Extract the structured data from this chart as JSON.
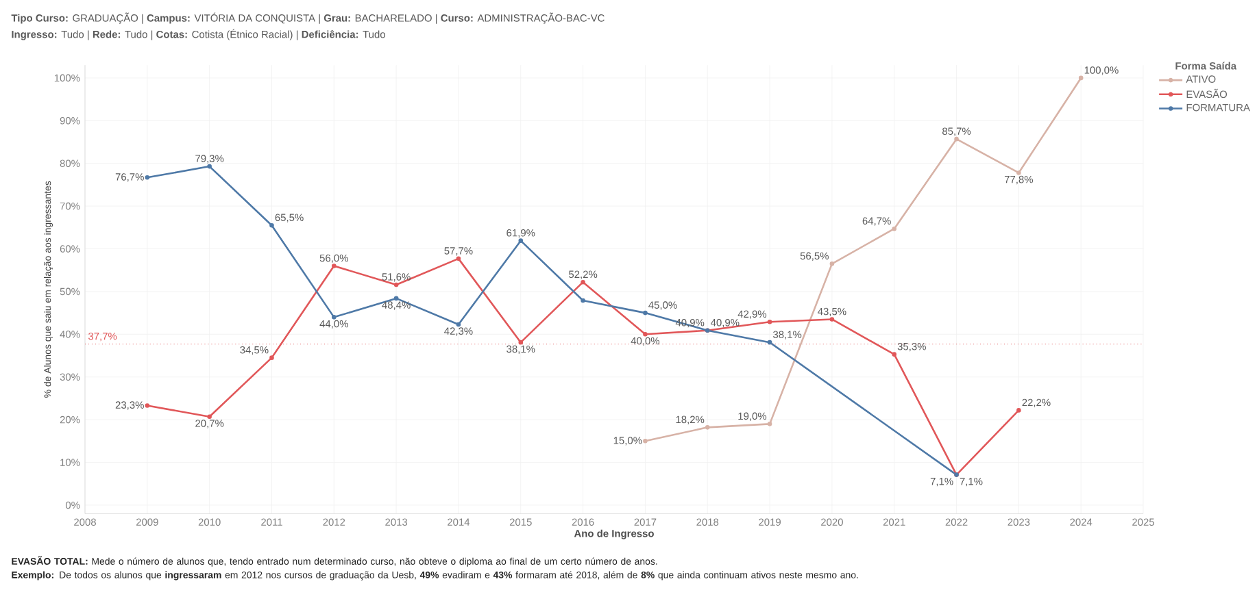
{
  "chart_data": {
    "type": "line",
    "title": "**Tipo Curso:** GRADUAÇÃO | **Campus:** VITÓRIA DA CONQUISTA | **Grau:** BACHARELADO | **Curso:** ADMINISTRAÇÃO-BAC-VC",
    "subtitle": "**Ingresso:** Tudo | **Rede:** Tudo | **Cotas:** Cotista (Étnico Racial) | **Deficiência:** Tudo",
    "xlabel": "Ano de Ingresso",
    "ylabel": "% de Alunos que saiu em relação aos ingressantes",
    "legend_title": "Forma Saída",
    "series": [
      {
        "name": "ATIVO",
        "color": "#d7b2a6",
        "x": [
          2017,
          2018,
          2019,
          2020,
          2021,
          2022,
          2023,
          2024
        ],
        "values": [
          15.0,
          18.2,
          19.0,
          56.5,
          64.7,
          85.7,
          77.8,
          100.0
        ],
        "value_labels": [
          "15,0%",
          "18,2%",
          "19,0%",
          "56,5%",
          "64,7%",
          "85,7%",
          "77,8%",
          "100,0%"
        ]
      },
      {
        "name": "EVASÃO",
        "color": "#e15759",
        "x": [
          2009,
          2010,
          2011,
          2012,
          2013,
          2014,
          2015,
          2016,
          2017,
          2018,
          2019,
          2020,
          2021,
          2022,
          2023
        ],
        "values": [
          23.3,
          20.7,
          34.5,
          56.0,
          51.6,
          57.7,
          38.1,
          52.2,
          40.0,
          40.9,
          42.9,
          43.5,
          35.3,
          7.1,
          22.2
        ],
        "value_labels": [
          "23,3%",
          "20,7%",
          "34,5%",
          "56,0%",
          "51,6%",
          "57,7%",
          "38,1%",
          "52,2%",
          "40,0%",
          "40,9%",
          "42,9%",
          "43,5%",
          "35,3%",
          "7,1%",
          "22,2%"
        ]
      },
      {
        "name": "FORMATURA",
        "color": "#4e79a7",
        "x": [
          2009,
          2010,
          2011,
          2012,
          2013,
          2014,
          2015,
          2016,
          2017,
          2018,
          2019,
          2022
        ],
        "values": [
          76.7,
          79.3,
          65.5,
          44.0,
          48.4,
          42.3,
          61.9,
          47.9,
          45.0,
          40.9,
          38.1,
          7.1
        ],
        "value_labels": [
          "76,7%",
          "79,3%",
          "65,5%",
          "44,0%",
          "48,4%",
          "42,3%",
          "61,9%",
          null,
          "45,0%",
          "40,9%",
          "38,1%",
          "7,1%"
        ]
      }
    ],
    "xlim": [
      2008,
      2025
    ],
    "xticks": [
      2008,
      2009,
      2010,
      2011,
      2012,
      2013,
      2014,
      2015,
      2016,
      2017,
      2018,
      2019,
      2020,
      2021,
      2022,
      2023,
      2024,
      2025
    ],
    "ylim": [
      -2,
      103
    ],
    "yticks": [
      {
        "value": 0,
        "label": "0%"
      },
      {
        "value": 10,
        "label": "10%"
      },
      {
        "value": 20,
        "label": "20%"
      },
      {
        "value": 30,
        "label": "30%"
      },
      {
        "value": 40,
        "label": "40%"
      },
      {
        "value": 50,
        "label": "50%"
      },
      {
        "value": 60,
        "label": "60%"
      },
      {
        "value": 70,
        "label": "70%"
      },
      {
        "value": 80,
        "label": "80%"
      },
      {
        "value": 90,
        "label": "90%"
      },
      {
        "value": 100,
        "label": "100%"
      }
    ],
    "ref_lines": [
      {
        "axis": "y",
        "value": 37.7,
        "label": "37,7%",
        "color": "#e15759",
        "line_style": "dotted"
      }
    ],
    "grid": true,
    "legend": "top right",
    "marker": "circle",
    "line_style": "solid",
    "annotations": [
      "**EVASÃO TOTAL:** Mede o número de alunos que, tendo entrado num determinado curso, não obteve o diploma ao final de um certo número de anos.",
      "**Exemplo:** De todos os alunos que **ingressaram** em 2012 nos cursos de graduação da Uesb, **49%** evadiram e **43%** formaram até 2018, além de **8%** que ainda continuam ativos neste mesmo ano."
    ]
  }
}
